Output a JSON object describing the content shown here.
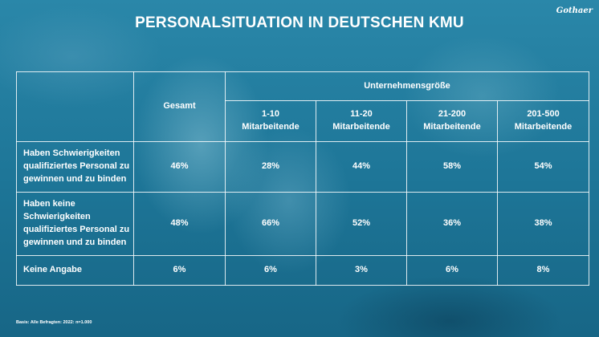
{
  "title": "PERSONALSITUATION IN DEUTSCHEN KMU",
  "logo_text": "Gothaer",
  "footnote": "Basis: Alle Befragten: 2022: n=1.000",
  "colors": {
    "background": "#1e7b9e",
    "text": "#ffffff",
    "grid": "#ffffff"
  },
  "chart_data": {
    "type": "table",
    "group_header": "Unternehmensgröße",
    "columns": [
      "Gesamt",
      "1-10 Mitarbeitende",
      "11-20 Mitarbeitende",
      "21-200 Mitarbeitende",
      "201-500 Mitarbeitende"
    ],
    "column_lines": [
      [
        "Gesamt"
      ],
      [
        "1-10",
        "Mitarbeitende"
      ],
      [
        "11-20",
        "Mitarbeitende"
      ],
      [
        "21-200",
        "Mitarbeitende"
      ],
      [
        "201-500",
        "Mitarbeitende"
      ]
    ],
    "rows": [
      {
        "label": "Haben Schwierigkeiten qualifiziertes Personal zu gewinnen und zu binden",
        "label_lines": [
          "Haben Schwierigkeiten",
          "qualifiziertes Personal zu",
          "gewinnen und zu binden"
        ],
        "values": [
          "46%",
          "28%",
          "44%",
          "58%",
          "54%"
        ]
      },
      {
        "label": "Haben keine Schwierigkeiten qualifiziertes Personal zu gewinnen und zu binden",
        "label_lines": [
          "Haben keine",
          "Schwierigkeiten",
          "qualifiziertes Personal zu",
          "gewinnen und zu binden"
        ],
        "values": [
          "48%",
          "66%",
          "52%",
          "36%",
          "38%"
        ]
      },
      {
        "label": "Keine Angabe",
        "label_lines": [
          "Keine Angabe"
        ],
        "values": [
          "6%",
          "6%",
          "3%",
          "6%",
          "8%"
        ]
      }
    ]
  }
}
